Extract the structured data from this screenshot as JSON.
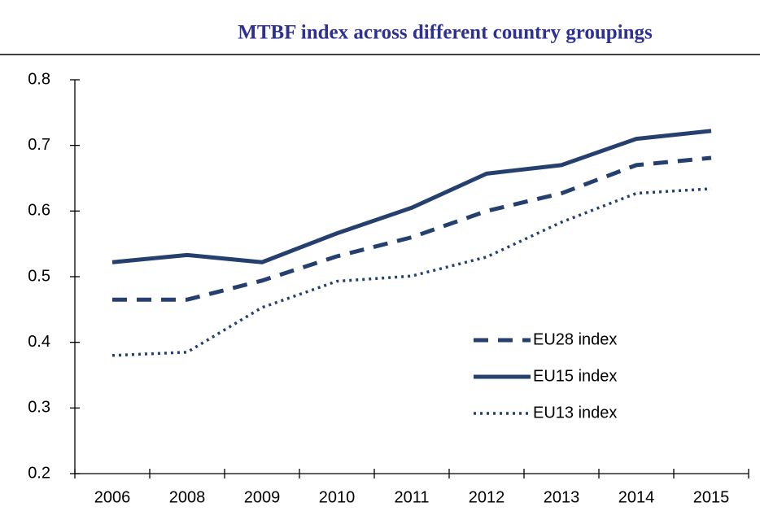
{
  "chart_data": {
    "type": "line",
    "title": "MTBF index across different country groupings",
    "categories": [
      "2006",
      "2008",
      "2009",
      "2010",
      "2011",
      "2012",
      "2013",
      "2014",
      "2015"
    ],
    "series": [
      {
        "name": "EU28 index",
        "color": "#25406e",
        "dash": "dashed",
        "values": [
          0.465,
          0.465,
          0.494,
          0.531,
          0.56,
          0.6,
          0.627,
          0.67,
          0.681
        ]
      },
      {
        "name": "EU15 index",
        "color": "#25406e",
        "dash": "solid",
        "values": [
          0.522,
          0.533,
          0.522,
          0.566,
          0.605,
          0.657,
          0.67,
          0.71,
          0.722
        ]
      },
      {
        "name": "EU13 index",
        "color": "#25406e",
        "dash": "dotted",
        "values": [
          0.38,
          0.385,
          0.453,
          0.493,
          0.501,
          0.53,
          0.583,
          0.627,
          0.634
        ]
      }
    ],
    "ylim": [
      0.2,
      0.8
    ],
    "yticks": [
      0.2,
      0.3,
      0.4,
      0.5,
      0.6,
      0.7,
      0.8
    ],
    "grid": false,
    "legend": "lower right"
  }
}
